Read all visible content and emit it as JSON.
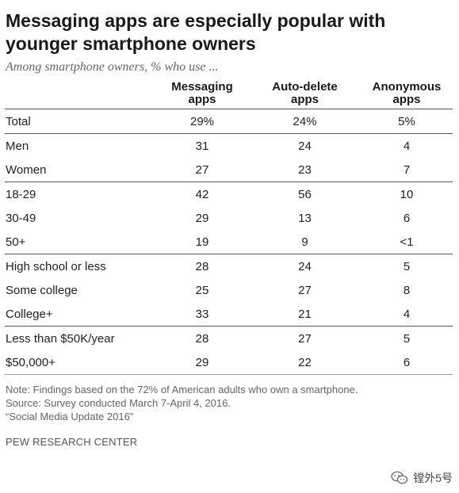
{
  "header": {
    "title_line1": "Messaging apps are especially popular with",
    "title_line2": "younger smartphone owners",
    "subtitle": "Among smartphone owners, % who use ..."
  },
  "chart_data": {
    "type": "table",
    "columns": [
      {
        "line1": "Messaging",
        "line2": "apps"
      },
      {
        "line1": "Auto-delete",
        "line2": "apps"
      },
      {
        "line1": "Anonymous",
        "line2": "apps"
      }
    ],
    "groups": [
      [
        {
          "label": "Total",
          "values": [
            "29%",
            "24%",
            "5%"
          ]
        }
      ],
      [
        {
          "label": "Men",
          "values": [
            "31",
            "24",
            "4"
          ]
        },
        {
          "label": "Women",
          "values": [
            "27",
            "23",
            "7"
          ]
        }
      ],
      [
        {
          "label": "18-29",
          "values": [
            "42",
            "56",
            "10"
          ]
        },
        {
          "label": "30-49",
          "values": [
            "29",
            "13",
            "6"
          ]
        },
        {
          "label": "50+",
          "values": [
            "19",
            "9",
            "<1"
          ]
        }
      ],
      [
        {
          "label": "High school or less",
          "values": [
            "28",
            "24",
            "5"
          ]
        },
        {
          "label": "Some college",
          "values": [
            "25",
            "27",
            "8"
          ]
        },
        {
          "label": "College+",
          "values": [
            "33",
            "21",
            "4"
          ]
        }
      ],
      [
        {
          "label": "Less than $50K/year",
          "values": [
            "28",
            "27",
            "5"
          ]
        },
        {
          "label": "$50,000+",
          "values": [
            "29",
            "22",
            "6"
          ]
        }
      ]
    ]
  },
  "notes": {
    "note": "Note: Findings based on the 72% of American adults who own a smartphone.",
    "source": "Source: Survey conducted March 7-April 4, 2016.",
    "report": "“Social Media Update 2016”"
  },
  "footer": {
    "org": "PEW RESEARCH CENTER",
    "watermark_text": "镗外5号",
    "watermark_icon": "wechat-icon"
  }
}
